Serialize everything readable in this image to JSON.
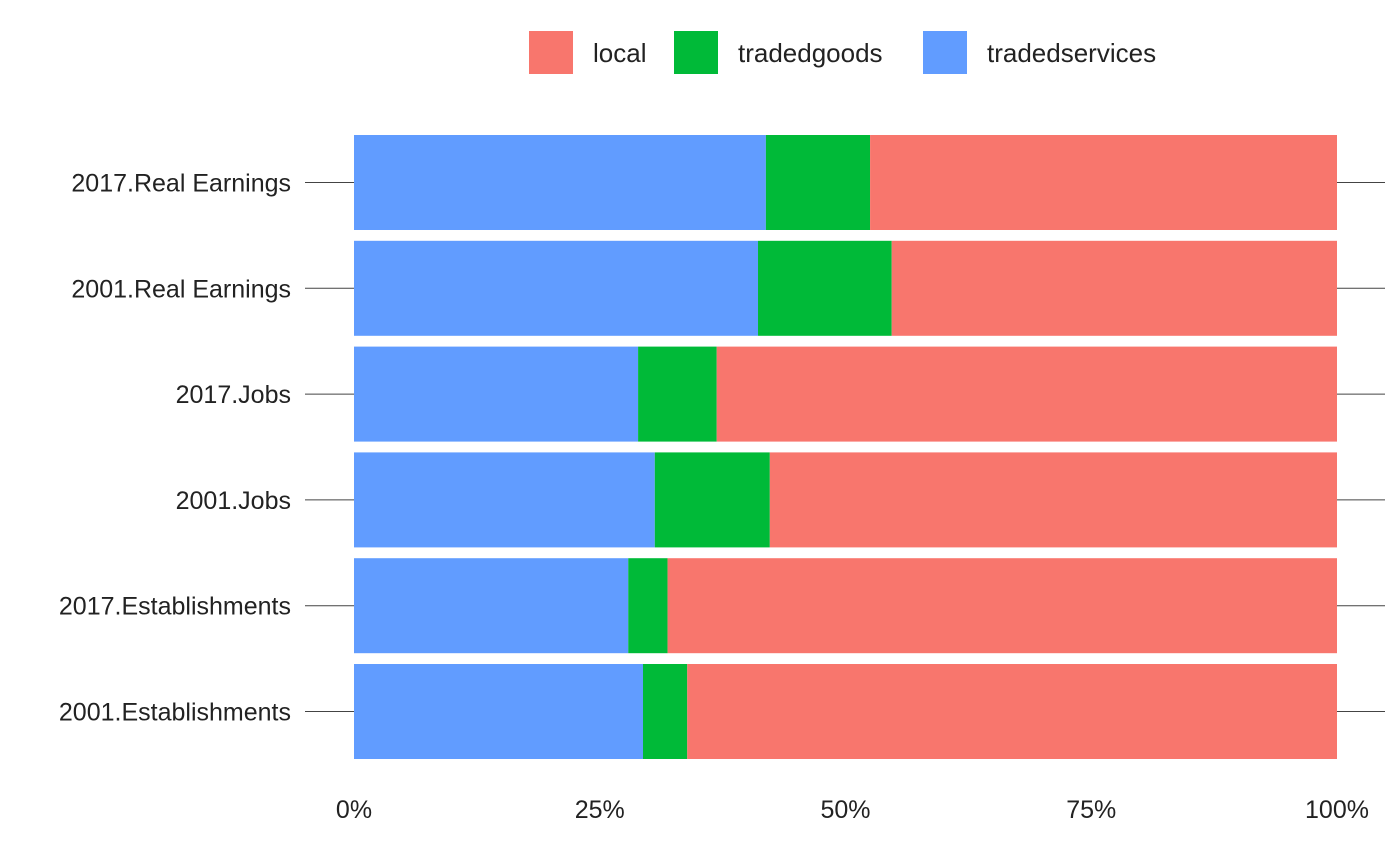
{
  "chart_data": {
    "type": "bar",
    "orientation": "horizontal",
    "stacked": true,
    "normalized": true,
    "categories": [
      "2017.Real Earnings",
      "2001.Real Earnings",
      "2017.Jobs",
      "2001.Jobs",
      "2017.Establishments",
      "2001.Establishments"
    ],
    "series": [
      {
        "name": "tradedservices",
        "color": "#619CFF",
        "values": [
          41.9,
          41.1,
          28.9,
          30.6,
          27.9,
          29.4
        ]
      },
      {
        "name": "tradedgoods",
        "color": "#00BA38",
        "values": [
          10.6,
          13.6,
          8.0,
          11.7,
          4.0,
          4.5
        ]
      },
      {
        "name": "local",
        "color": "#F8766D",
        "values": [
          47.5,
          45.3,
          63.1,
          57.7,
          68.1,
          66.1
        ]
      }
    ],
    "legend_order": [
      "local",
      "tradedgoods",
      "tradedservices"
    ],
    "legend_position": "top",
    "xlim": [
      0,
      100
    ],
    "x_ticks": [
      0,
      25,
      50,
      75,
      100
    ],
    "x_tick_labels": [
      "0%",
      "25%",
      "50%",
      "75%",
      "100%"
    ],
    "title": "",
    "xlabel": "",
    "ylabel": "",
    "grid": false
  }
}
